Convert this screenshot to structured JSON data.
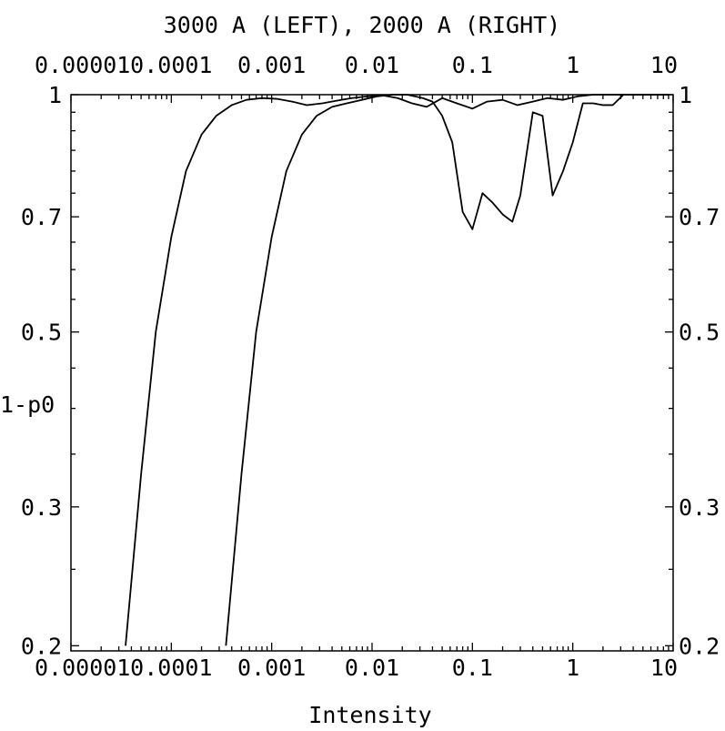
{
  "chart_data": {
    "type": "line",
    "title": "3000 A (LEFT), 2000 A (RIGHT)",
    "xlabel": "Intensity",
    "ylabel": "1-p0",
    "x_scale": "log",
    "y_scale": "log",
    "xlim": [
      1e-05,
      10
    ],
    "ylim": [
      0.197,
      1.0
    ],
    "grid": false,
    "x_tick_labels": [
      "0.00001",
      "0.0001",
      "0.001",
      "0.01",
      "0.1",
      "1",
      "10"
    ],
    "x_ticks": [
      1e-05,
      0.0001,
      0.001,
      0.01,
      0.1,
      1,
      10
    ],
    "y_tick_labels": [
      "0.2",
      "0.3",
      "0.5",
      "0.7",
      "1"
    ],
    "y_ticks": [
      0.2,
      0.3,
      0.5,
      0.7,
      1
    ],
    "series": [
      {
        "x": [
          3.5e-05,
          5e-05,
          7e-05,
          0.0001,
          0.00014,
          0.0002,
          0.00028,
          0.0004,
          0.00056,
          0.0008,
          0.00112,
          0.0016,
          0.00224,
          0.0032,
          0.0045,
          0.0063,
          0.009,
          0.0127,
          0.018,
          0.025,
          0.035,
          0.05,
          0.07,
          0.1,
          0.14,
          0.2,
          0.28,
          0.4,
          0.56,
          0.8,
          1.12,
          1.6,
          2.24,
          3.2,
          4.5,
          6.3,
          9
        ],
        "y": [
          0.2,
          0.33,
          0.5,
          0.66,
          0.8,
          0.89,
          0.94,
          0.97,
          0.985,
          0.99,
          0.988,
          0.98,
          0.97,
          0.975,
          0.983,
          0.99,
          0.995,
          0.998,
          0.99,
          0.975,
          0.965,
          0.99,
          0.975,
          0.96,
          0.98,
          0.985,
          0.97,
          0.98,
          0.99,
          0.985,
          0.995,
          1.0,
          1.0,
          1.0,
          1.0,
          1.0,
          1.0
        ]
      },
      {
        "x": [
          0.00035,
          0.0005,
          0.0007,
          0.001,
          0.0014,
          0.002,
          0.0028,
          0.004,
          0.0056,
          0.008,
          0.0112,
          0.016,
          0.0224,
          0.032,
          0.04,
          0.05,
          0.063,
          0.08,
          0.1,
          0.126,
          0.158,
          0.2,
          0.25,
          0.3,
          0.4,
          0.5,
          0.63,
          0.8,
          1.0,
          1.26,
          1.6,
          2.0,
          2.5,
          3.2,
          4.5,
          6.3,
          9
        ],
        "y": [
          0.2,
          0.33,
          0.5,
          0.66,
          0.8,
          0.89,
          0.94,
          0.965,
          0.975,
          0.985,
          0.995,
          1.0,
          1.0,
          0.99,
          0.98,
          0.94,
          0.87,
          0.71,
          0.675,
          0.75,
          0.73,
          0.705,
          0.69,
          0.745,
          0.95,
          0.94,
          0.745,
          0.8,
          0.87,
          0.975,
          0.975,
          0.97,
          0.97,
          1.0,
          1.0,
          1.0,
          1.0
        ]
      }
    ]
  }
}
